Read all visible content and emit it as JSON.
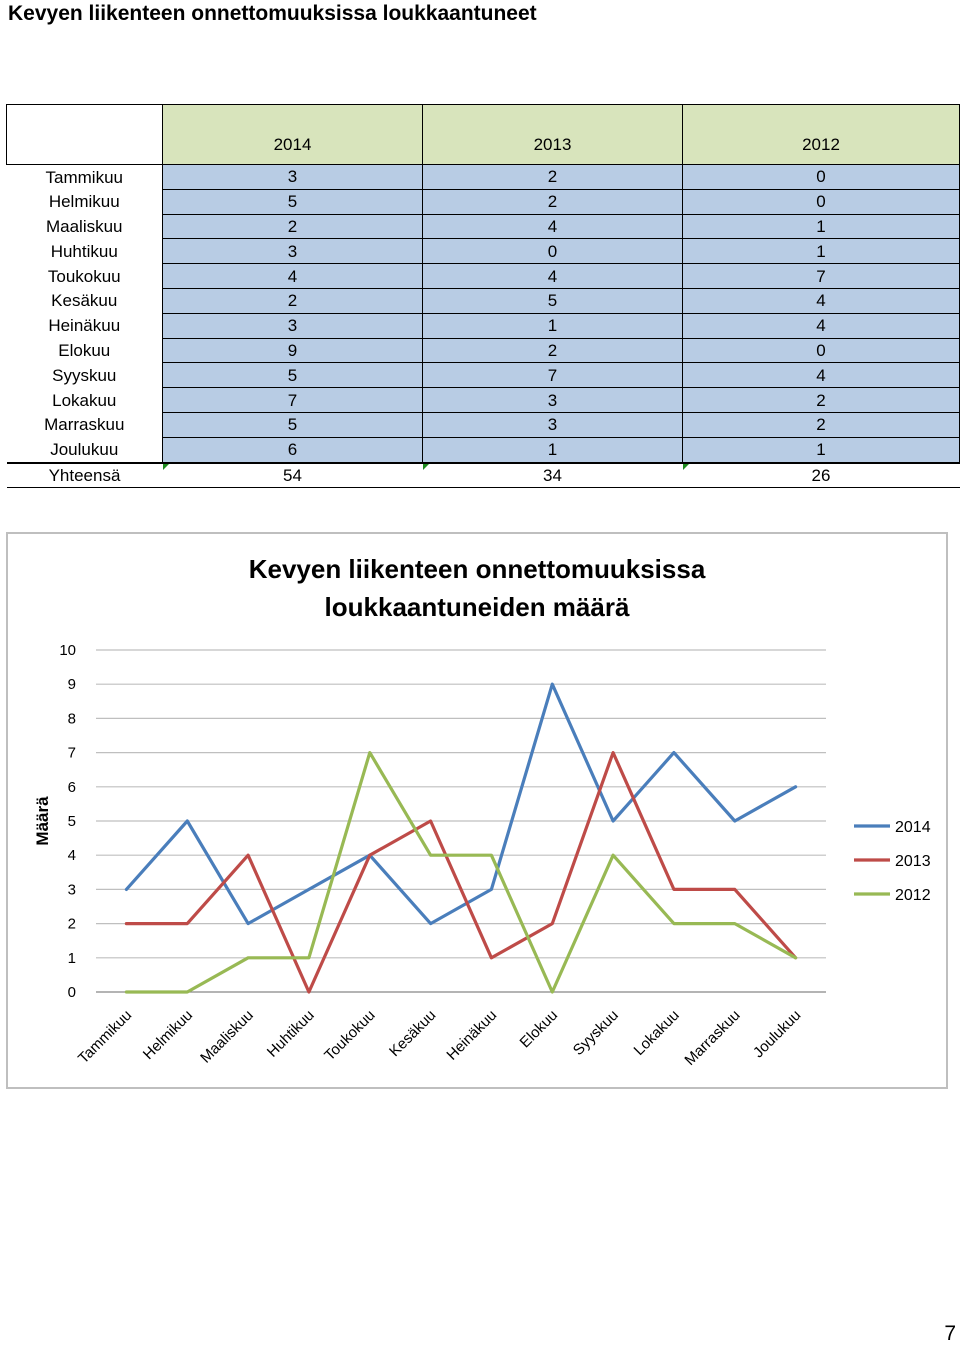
{
  "page": {
    "title": "Kevyen liikenteen onnettomuuksissa loukkaantuneet",
    "page_number": "7"
  },
  "table": {
    "columns": [
      "2014",
      "2013",
      "2012"
    ],
    "rows": [
      {
        "label": "Tammikuu",
        "values": [
          "3",
          "2",
          "0"
        ]
      },
      {
        "label": "Helmikuu",
        "values": [
          "5",
          "2",
          "0"
        ]
      },
      {
        "label": "Maaliskuu",
        "values": [
          "2",
          "4",
          "1"
        ]
      },
      {
        "label": "Huhtikuu",
        "values": [
          "3",
          "0",
          "1"
        ]
      },
      {
        "label": "Toukokuu",
        "values": [
          "4",
          "4",
          "7"
        ]
      },
      {
        "label": "Kesäkuu",
        "values": [
          "2",
          "5",
          "4"
        ]
      },
      {
        "label": "Heinäkuu",
        "values": [
          "3",
          "1",
          "4"
        ]
      },
      {
        "label": "Elokuu",
        "values": [
          "9",
          "2",
          "0"
        ]
      },
      {
        "label": "Syyskuu",
        "values": [
          "5",
          "7",
          "4"
        ]
      },
      {
        "label": "Lokakuu",
        "values": [
          "7",
          "3",
          "2"
        ]
      },
      {
        "label": "Marraskuu",
        "values": [
          "5",
          "3",
          "2"
        ]
      },
      {
        "label": "Joulukuu",
        "values": [
          "6",
          "1",
          "1"
        ]
      }
    ],
    "total": {
      "label": "Yhteensä",
      "values": [
        "54",
        "34",
        "26"
      ]
    }
  },
  "chart_data": {
    "type": "line",
    "title_line1": "Kevyen liikenteen onnettomuuksissa",
    "title_line2": "loukkaantuneiden määrä",
    "ylabel": "Määrä",
    "xlabel": "",
    "ylim": [
      0,
      10
    ],
    "yticks": [
      "0",
      "1",
      "2",
      "3",
      "4",
      "5",
      "6",
      "7",
      "8",
      "9",
      "10"
    ],
    "grid": true,
    "legend_position": "right",
    "categories": [
      "Tammikuu",
      "Helmikuu",
      "Maaliskuu",
      "Huhtikuu",
      "Toukokuu",
      "Kesäkuu",
      "Heinäkuu",
      "Elokuu",
      "Syyskuu",
      "Lokakuu",
      "Marraskuu",
      "Joulukuu"
    ],
    "series": [
      {
        "name": "2014",
        "color": "#4a7ebb",
        "values": [
          3,
          5,
          2,
          3,
          4,
          2,
          3,
          9,
          5,
          7,
          5,
          6
        ]
      },
      {
        "name": "2013",
        "color": "#be4b48",
        "values": [
          2,
          2,
          4,
          0,
          4,
          5,
          1,
          2,
          7,
          3,
          3,
          1
        ]
      },
      {
        "name": "2012",
        "color": "#98b954",
        "values": [
          0,
          0,
          1,
          1,
          7,
          4,
          4,
          0,
          4,
          2,
          2,
          1
        ]
      }
    ]
  }
}
